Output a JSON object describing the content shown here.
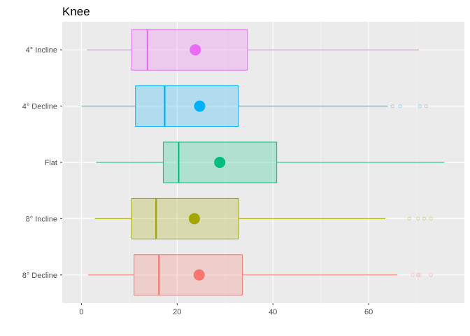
{
  "chart_data": {
    "type": "boxplot",
    "orientation": "horizontal",
    "title": "Knee",
    "xlabel": "",
    "ylabel": "",
    "xlim": [
      -4,
      80
    ],
    "x_ticks": [
      0,
      20,
      40,
      60
    ],
    "grid": true,
    "legend": "none",
    "background": "#ebebeb",
    "categories": [
      "4° Incline",
      "4° Decline",
      "Flat",
      "8° Incline",
      "8° Decline"
    ],
    "series": [
      {
        "category": "4° Incline",
        "color": "#e76bf3",
        "whisker_low": 1.2,
        "q1": 10.5,
        "median": 13.8,
        "q3": 34.7,
        "whisker_high": 70.5,
        "mean": 23.8,
        "outliers": []
      },
      {
        "category": "4° Decline",
        "color": "#00b0f6",
        "whisker_low": 0.0,
        "q1": 11.3,
        "median": 17.4,
        "q3": 32.8,
        "whisker_high": 64.0,
        "mean": 24.7,
        "outliers": [
          65.0,
          66.6,
          70.7,
          72.0
        ]
      },
      {
        "category": "Flat",
        "color": "#00bf7d",
        "whisker_low": 3.1,
        "q1": 17.1,
        "median": 20.3,
        "q3": 40.8,
        "whisker_high": 75.8,
        "mean": 28.9,
        "outliers": []
      },
      {
        "category": "8° Incline",
        "color": "#a3a500",
        "whisker_low": 2.8,
        "q1": 10.5,
        "median": 15.6,
        "q3": 32.8,
        "whisker_high": 63.5,
        "mean": 23.6,
        "outliers": [
          68.5,
          70.3,
          71.6,
          73.0
        ]
      },
      {
        "category": "8° Decline",
        "color": "#f8766d",
        "whisker_low": 1.4,
        "q1": 11.0,
        "median": 16.2,
        "q3": 33.6,
        "whisker_high": 66.0,
        "mean": 24.6,
        "outliers": [
          69.2,
          70.3,
          70.6,
          73.0
        ]
      }
    ]
  }
}
